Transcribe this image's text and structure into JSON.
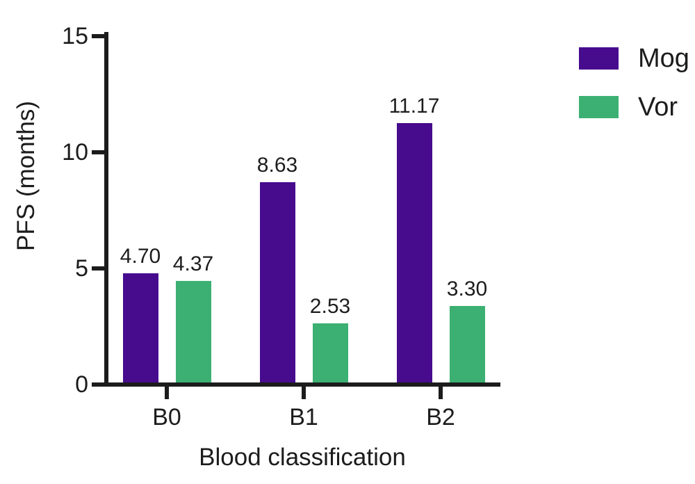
{
  "chart_data": {
    "type": "bar",
    "title": "",
    "xlabel": "Blood classification",
    "ylabel": "PFS (months)",
    "categories": [
      "B0",
      "B1",
      "B2"
    ],
    "series": [
      {
        "name": "Mog",
        "color": "#470B8E",
        "values": [
          4.7,
          8.63,
          11.17
        ],
        "value_labels": [
          "4.70",
          "8.63",
          "11.17"
        ]
      },
      {
        "name": "Vor",
        "color": "#3CB072",
        "values": [
          4.37,
          2.53,
          3.3
        ],
        "value_labels": [
          "4.37",
          "2.53",
          "3.30"
        ]
      }
    ],
    "ylim": [
      0,
      15
    ],
    "yticks": [
      0,
      5,
      10,
      15
    ],
    "grid": false,
    "legend_position": "top-right",
    "value_labels_shown": true,
    "axis_color": "#1c1c1c",
    "background_color": "#ffffff"
  }
}
